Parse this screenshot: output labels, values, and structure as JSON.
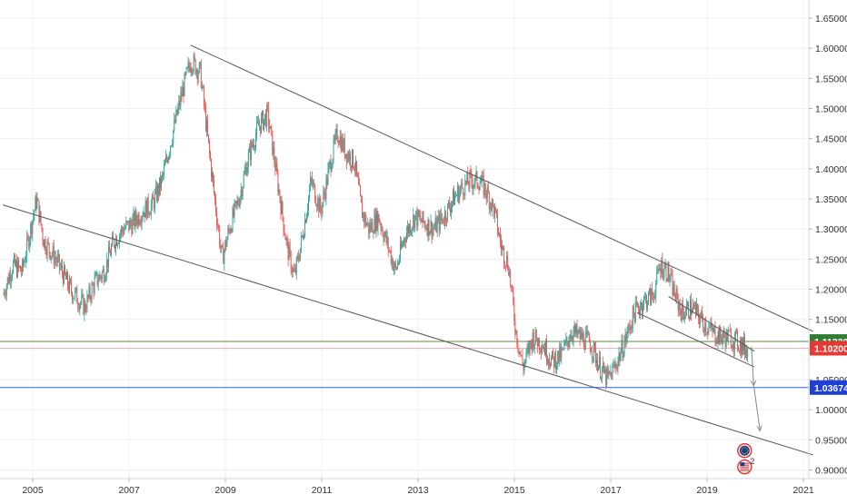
{
  "chart_data": {
    "type": "candlestick",
    "title": "",
    "xlabel": "",
    "ylabel": "",
    "x_ticks": [
      "2005",
      "2007",
      "2009",
      "2011",
      "2013",
      "2015",
      "2017",
      "2019",
      "2021"
    ],
    "y_ticks": [
      "1.65000",
      "1.60000",
      "1.55000",
      "1.50000",
      "1.45000",
      "1.40000",
      "1.35000",
      "1.30000",
      "1.25000",
      "1.20000",
      "1.15000",
      "1.10000",
      "1.05000",
      "1.00000",
      "0.95000",
      "0.90000"
    ],
    "ylim": [
      0.892,
      1.667
    ],
    "xlim": [
      2004.38,
      2021.2
    ],
    "grid": true,
    "colors": {
      "up": "#26a69a",
      "down": "#ef5350",
      "trendline": "#555555",
      "grid": "#eef1f5"
    },
    "price_path": [
      [
        2004.4,
        1.19
      ],
      [
        2004.6,
        1.24
      ],
      [
        2004.8,
        1.23
      ],
      [
        2004.95,
        1.29
      ],
      [
        2005.1,
        1.35
      ],
      [
        2005.25,
        1.28
      ],
      [
        2005.5,
        1.25
      ],
      [
        2005.8,
        1.2
      ],
      [
        2006.1,
        1.17
      ],
      [
        2006.3,
        1.21
      ],
      [
        2006.5,
        1.23
      ],
      [
        2006.7,
        1.28
      ],
      [
        2006.9,
        1.3
      ],
      [
        2007.1,
        1.31
      ],
      [
        2007.3,
        1.33
      ],
      [
        2007.5,
        1.34
      ],
      [
        2007.7,
        1.38
      ],
      [
        2007.9,
        1.45
      ],
      [
        2008.1,
        1.52
      ],
      [
        2008.3,
        1.58
      ],
      [
        2008.5,
        1.56
      ],
      [
        2008.65,
        1.45
      ],
      [
        2008.8,
        1.35
      ],
      [
        2008.95,
        1.25
      ],
      [
        2009.1,
        1.3
      ],
      [
        2009.3,
        1.35
      ],
      [
        2009.5,
        1.42
      ],
      [
        2009.7,
        1.47
      ],
      [
        2009.9,
        1.49
      ],
      [
        2010.1,
        1.38
      ],
      [
        2010.3,
        1.27
      ],
      [
        2010.45,
        1.22
      ],
      [
        2010.6,
        1.28
      ],
      [
        2010.8,
        1.38
      ],
      [
        2011.0,
        1.33
      ],
      [
        2011.2,
        1.41
      ],
      [
        2011.35,
        1.46
      ],
      [
        2011.5,
        1.43
      ],
      [
        2011.7,
        1.41
      ],
      [
        2011.85,
        1.33
      ],
      [
        2012.0,
        1.3
      ],
      [
        2012.2,
        1.32
      ],
      [
        2012.4,
        1.27
      ],
      [
        2012.55,
        1.23
      ],
      [
        2012.75,
        1.29
      ],
      [
        2012.95,
        1.32
      ],
      [
        2013.15,
        1.31
      ],
      [
        2013.35,
        1.3
      ],
      [
        2013.55,
        1.32
      ],
      [
        2013.75,
        1.35
      ],
      [
        2013.95,
        1.37
      ],
      [
        2014.1,
        1.38
      ],
      [
        2014.3,
        1.38
      ],
      [
        2014.45,
        1.36
      ],
      [
        2014.6,
        1.33
      ],
      [
        2014.75,
        1.27
      ],
      [
        2014.9,
        1.24
      ],
      [
        2015.05,
        1.13
      ],
      [
        2015.2,
        1.07
      ],
      [
        2015.4,
        1.12
      ],
      [
        2015.6,
        1.11
      ],
      [
        2015.8,
        1.08
      ],
      [
        2016.0,
        1.09
      ],
      [
        2016.2,
        1.13
      ],
      [
        2016.4,
        1.12
      ],
      [
        2016.6,
        1.11
      ],
      [
        2016.8,
        1.07
      ],
      [
        2016.95,
        1.05
      ],
      [
        2017.1,
        1.07
      ],
      [
        2017.3,
        1.11
      ],
      [
        2017.5,
        1.16
      ],
      [
        2017.7,
        1.18
      ],
      [
        2017.9,
        1.19
      ],
      [
        2018.05,
        1.24
      ],
      [
        2018.2,
        1.23
      ],
      [
        2018.35,
        1.19
      ],
      [
        2018.5,
        1.16
      ],
      [
        2018.7,
        1.17
      ],
      [
        2018.9,
        1.15
      ],
      [
        2019.1,
        1.13
      ],
      [
        2019.3,
        1.12
      ],
      [
        2019.5,
        1.12
      ],
      [
        2019.7,
        1.11
      ],
      [
        2019.85,
        1.1
      ]
    ],
    "trendlines": [
      {
        "x1": 2008.28,
        "y1": 1.605,
        "x2": 2021.2,
        "y2": 1.13
      },
      {
        "x1": 2004.38,
        "y1": 1.34,
        "x2": 2021.2,
        "y2": 0.925
      },
      {
        "x1": 2018.2,
        "y1": 1.188,
        "x2": 2019.98,
        "y2": 1.097
      },
      {
        "x1": 2017.55,
        "y1": 1.161,
        "x2": 2019.98,
        "y2": 1.071
      }
    ],
    "projection_arrows": [
      {
        "x1": 2019.92,
        "y1": 1.105,
        "x2": 2019.97,
        "y2": 1.04
      },
      {
        "x1": 2019.97,
        "y1": 1.04,
        "x2": 2020.1,
        "y2": 0.965
      }
    ],
    "horizontal_lines": [
      {
        "value": 1.1132,
        "label": "1.11320",
        "color": "#5e8e3e",
        "label_color": "#2e7d32"
      },
      {
        "value": 1.102,
        "label": "1.10200",
        "color": "#f4b4b4",
        "label_color": "#e53935"
      },
      {
        "value": 1.03674,
        "label": "1.03674",
        "color": "#2962ff",
        "label_color": "#1e3fd8"
      }
    ],
    "event_markers": [
      {
        "x": 2019.78,
        "y": 0.932,
        "icon": "eu-flag-icon",
        "count": ""
      },
      {
        "x": 2019.78,
        "y": 0.905,
        "icon": "us-flag-icon",
        "count": "2"
      }
    ]
  }
}
